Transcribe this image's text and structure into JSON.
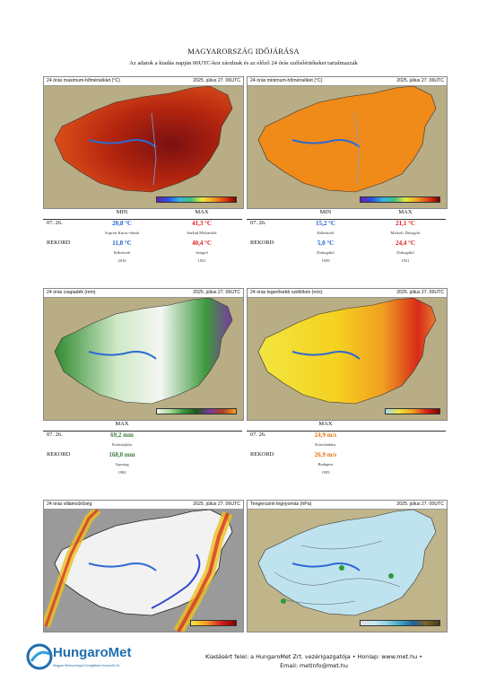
{
  "title": "MAGYARORSZÁG IDŐJÁRÁSA",
  "subtitle": "Az adatok a kiadás napján 06UTC-kor zárulnak és az előző 24 órás szélsőértékeket tartalmazzák",
  "maps": {
    "max_temp": {
      "title": "24 órás maximum-hőmérséklet (°C)",
      "date": "2025. július 27. 06UTC"
    },
    "min_temp": {
      "title": "24 órás minimum-hőmérséklet (°C)",
      "date": "2025. július 27. 06UTC"
    },
    "precip": {
      "title": "24 órás csapadék (mm)",
      "date": "2025. július 27. 06UTC"
    },
    "wind": {
      "title": "24 órás legerősebb széllökés (m/s)",
      "date": "2025. július 27. 06UTC"
    },
    "lightning": {
      "title": "24 órás villámsűrűség",
      "date": "2025. július 27. 06UTC"
    },
    "pressure": {
      "title": "Tengerszinti légnyomás (hPa)",
      "date": "2025. július 27. 00UTC"
    }
  },
  "temp_table": {
    "min_header": "MIN",
    "max_header": "MAX",
    "date_label": "07. 26.",
    "record_label": "REKORD",
    "left": {
      "min_value": "20,8 °C",
      "min_station": "Sopron Kuruc-domb",
      "max_value": "41,3 °C",
      "max_station": "Sarkad Malomfok",
      "rec_min_value": "11,8 °C",
      "rec_min_station": "Kékestető",
      "rec_min_year": "2010",
      "rec_max_value": "40,4 °C",
      "rec_max_station": "Szeged",
      "rec_max_year": "1921"
    },
    "right": {
      "min_value": "15,2 °C",
      "min_station": "Kékestető",
      "max_value": "21,1 °C",
      "max_station": "Miskolc Diósgyőr",
      "rec_min_value": "5,0 °C",
      "rec_min_station": "Dobogókő",
      "rec_min_year": "1939",
      "rec_max_value": "24,4 °C",
      "rec_max_station": "Dobogókő",
      "rec_max_year": "1921"
    }
  },
  "precip_table": {
    "max_header": "MAX",
    "date_label": "07. 26.",
    "record_label": "REKORD",
    "value": "69,2 mm",
    "station": "Körösújfalu",
    "rec_value": "168,0 mm",
    "rec_station": "Apostag",
    "rec_year": "1982"
  },
  "wind_table": {
    "max_header": "MAX",
    "date_label": "07. 26.",
    "record_label": "REKORD",
    "value": "24,9 m/s",
    "station": "Körösladány",
    "rec_value": "26,9 m/s",
    "rec_station": "Budapest",
    "rec_year": "1959"
  },
  "colors": {
    "record_blue": "#1f5fd0",
    "record_red": "#e01919",
    "precip_green": "#3c7c3a",
    "wind_orange": "#e07a10",
    "brand_blue": "#1f6fb0"
  },
  "logo": {
    "name": "HungaroMet",
    "tagline": "Magyar Meteorológiai Szolgáltató Nonprofit Zrt."
  },
  "footer": {
    "line1": "Kiadásért felel: a HungaroMet Zrt. vezérigazgatója • Honlap: www.met.hu •",
    "line2": "Email: metinfo@met.hu"
  }
}
